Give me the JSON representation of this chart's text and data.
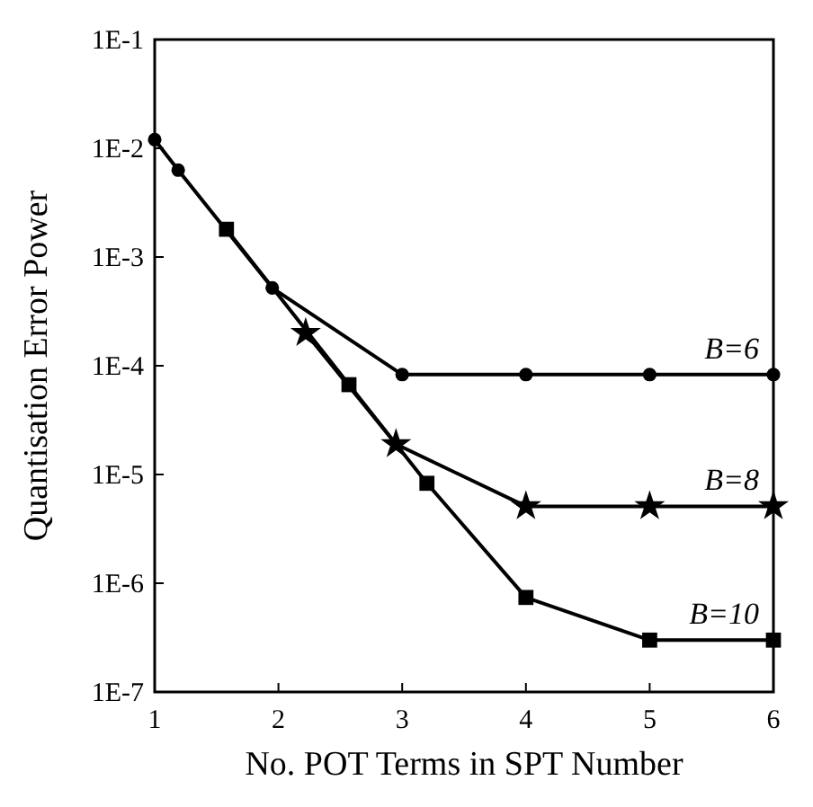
{
  "chart_data": {
    "type": "line",
    "xlabel": "No. POT Terms in SPT Number",
    "ylabel": "Quantisation Error Power",
    "log": "y",
    "xlim": [
      1,
      6
    ],
    "xticks": [
      1,
      2,
      3,
      4,
      5,
      6
    ],
    "ylim": [
      1e-07,
      0.1
    ],
    "yticks": [
      {
        "value": 1e-07,
        "label": "1E-7"
      },
      {
        "value": 1e-06,
        "label": "1E-6"
      },
      {
        "value": 1e-05,
        "label": "1E-5"
      },
      {
        "value": 0.0001,
        "label": "1E-4"
      },
      {
        "value": 0.001,
        "label": "1E-3"
      },
      {
        "value": 0.01,
        "label": "1E-2"
      },
      {
        "value": 0.1,
        "label": "1E-1"
      }
    ],
    "grid": false,
    "legend": false,
    "series": [
      {
        "name": "B=6",
        "color": "#000000",
        "marker": "circle",
        "x": [
          1,
          1.19,
          1.95,
          3,
          4,
          5,
          6
        ],
        "values": [
          0.012,
          0.0063,
          0.00052,
          8.3e-05,
          8.3e-05,
          8.3e-05,
          8.3e-05
        ]
      },
      {
        "name": "B=8",
        "color": "#000000",
        "marker": "star",
        "x": [
          2.22,
          2.95,
          4,
          5,
          6
        ],
        "values": [
          0.0002,
          1.9e-05,
          5.1e-06,
          5.1e-06,
          5.1e-06
        ]
      },
      {
        "name": "B=10",
        "color": "#000000",
        "marker": "square",
        "x": [
          1.58,
          2.57,
          3.2,
          4,
          5,
          6
        ],
        "values": [
          0.0018,
          6.7e-05,
          8.3e-06,
          7.4e-07,
          3e-07,
          3e-07
        ]
      }
    ]
  }
}
